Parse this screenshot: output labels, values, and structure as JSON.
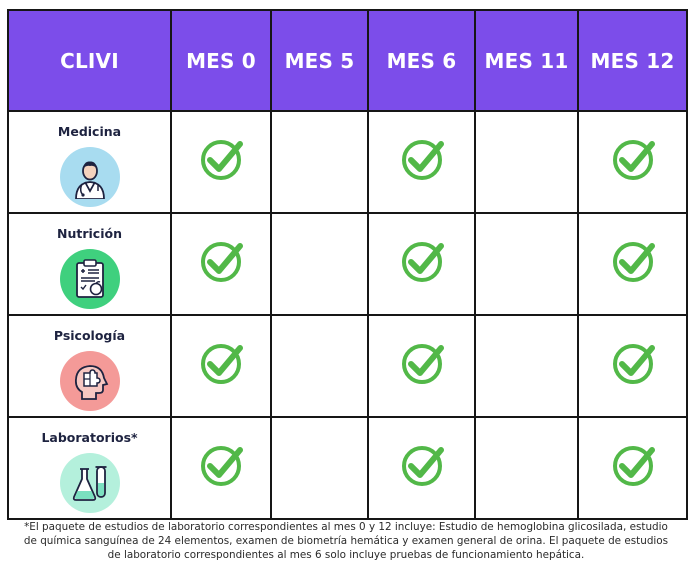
{
  "table": {
    "headers": [
      "CLIVI",
      "MES 0",
      "MES 5",
      "MES 6",
      "MES 11",
      "MES 12"
    ],
    "header_color": "#7c4dea",
    "check_color": "#52b848",
    "rows": [
      {
        "label": "Medicina",
        "icon": "doctor-icon",
        "circle_color": "#a8dcf0",
        "checks": [
          true,
          false,
          true,
          false,
          true
        ]
      },
      {
        "label": "Nutrición",
        "icon": "nutrition-clipboard-icon",
        "circle_color": "#3fd07e",
        "checks": [
          true,
          false,
          true,
          false,
          true
        ]
      },
      {
        "label": "Psicología",
        "icon": "head-puzzle-icon",
        "circle_color": "#f49a98",
        "checks": [
          true,
          false,
          true,
          false,
          true
        ]
      },
      {
        "label": "Laboratorios*",
        "icon": "lab-flask-icon",
        "circle_color": "#b4f0dc",
        "checks": [
          true,
          false,
          true,
          false,
          true
        ]
      }
    ]
  },
  "footnote": "*El paquete de estudios de laboratorio correspondientes al mes 0 y 12 incluye: Estudio de hemoglobina glicosilada, estudio de química sanguínea de 24 elementos, examen de biometría hemática y examen general de orina. El paquete de estudios de laboratorio correspondientes al mes 6 solo incluye pruebas de funcionamiento hepática."
}
